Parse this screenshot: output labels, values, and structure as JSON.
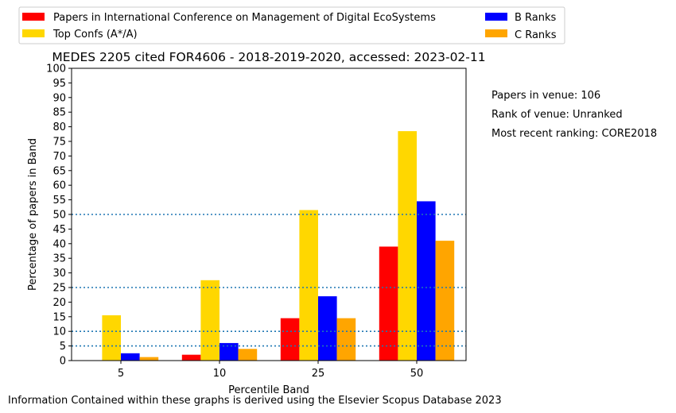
{
  "chart_data": {
    "type": "bar",
    "title": "MEDES 2205 cited FOR4606 - 2018-2019-2020, accessed: 2023-02-11",
    "xlabel": "Percentile Band",
    "ylabel": "Percentage of papers in Band",
    "categories": [
      "5",
      "10",
      "25",
      "50"
    ],
    "ylim": [
      0,
      100
    ],
    "yticks": [
      0,
      5,
      10,
      15,
      20,
      25,
      30,
      35,
      40,
      45,
      50,
      55,
      60,
      65,
      70,
      75,
      80,
      85,
      90,
      95,
      100
    ],
    "reference_lines": [
      5,
      10,
      25,
      50
    ],
    "reference_line_color": "#1f77b4",
    "grid": false,
    "legend_placement": "top, above plot, two columns",
    "series": [
      {
        "name": "Papers in International Conference on Management of Digital EcoSystems",
        "color": "#ff0000",
        "values": [
          0,
          2,
          14.5,
          39
        ]
      },
      {
        "name": "Top Confs (A*/A)",
        "color": "#ffd700",
        "values": [
          15.5,
          27.5,
          51.5,
          78.5
        ]
      },
      {
        "name": "B Ranks",
        "color": "#0000ff",
        "values": [
          2.5,
          6,
          22,
          54.5
        ]
      },
      {
        "name": "C Ranks",
        "color": "#ffa500",
        "values": [
          1.2,
          4,
          14.5,
          41
        ]
      }
    ]
  },
  "side_notes": [
    "Papers in venue: 106",
    "Rank of venue: Unranked",
    "Most recent ranking: CORE2018"
  ],
  "footer": "Information Contained within these graphs is derived using the Elsevier Scopus Database 2023"
}
